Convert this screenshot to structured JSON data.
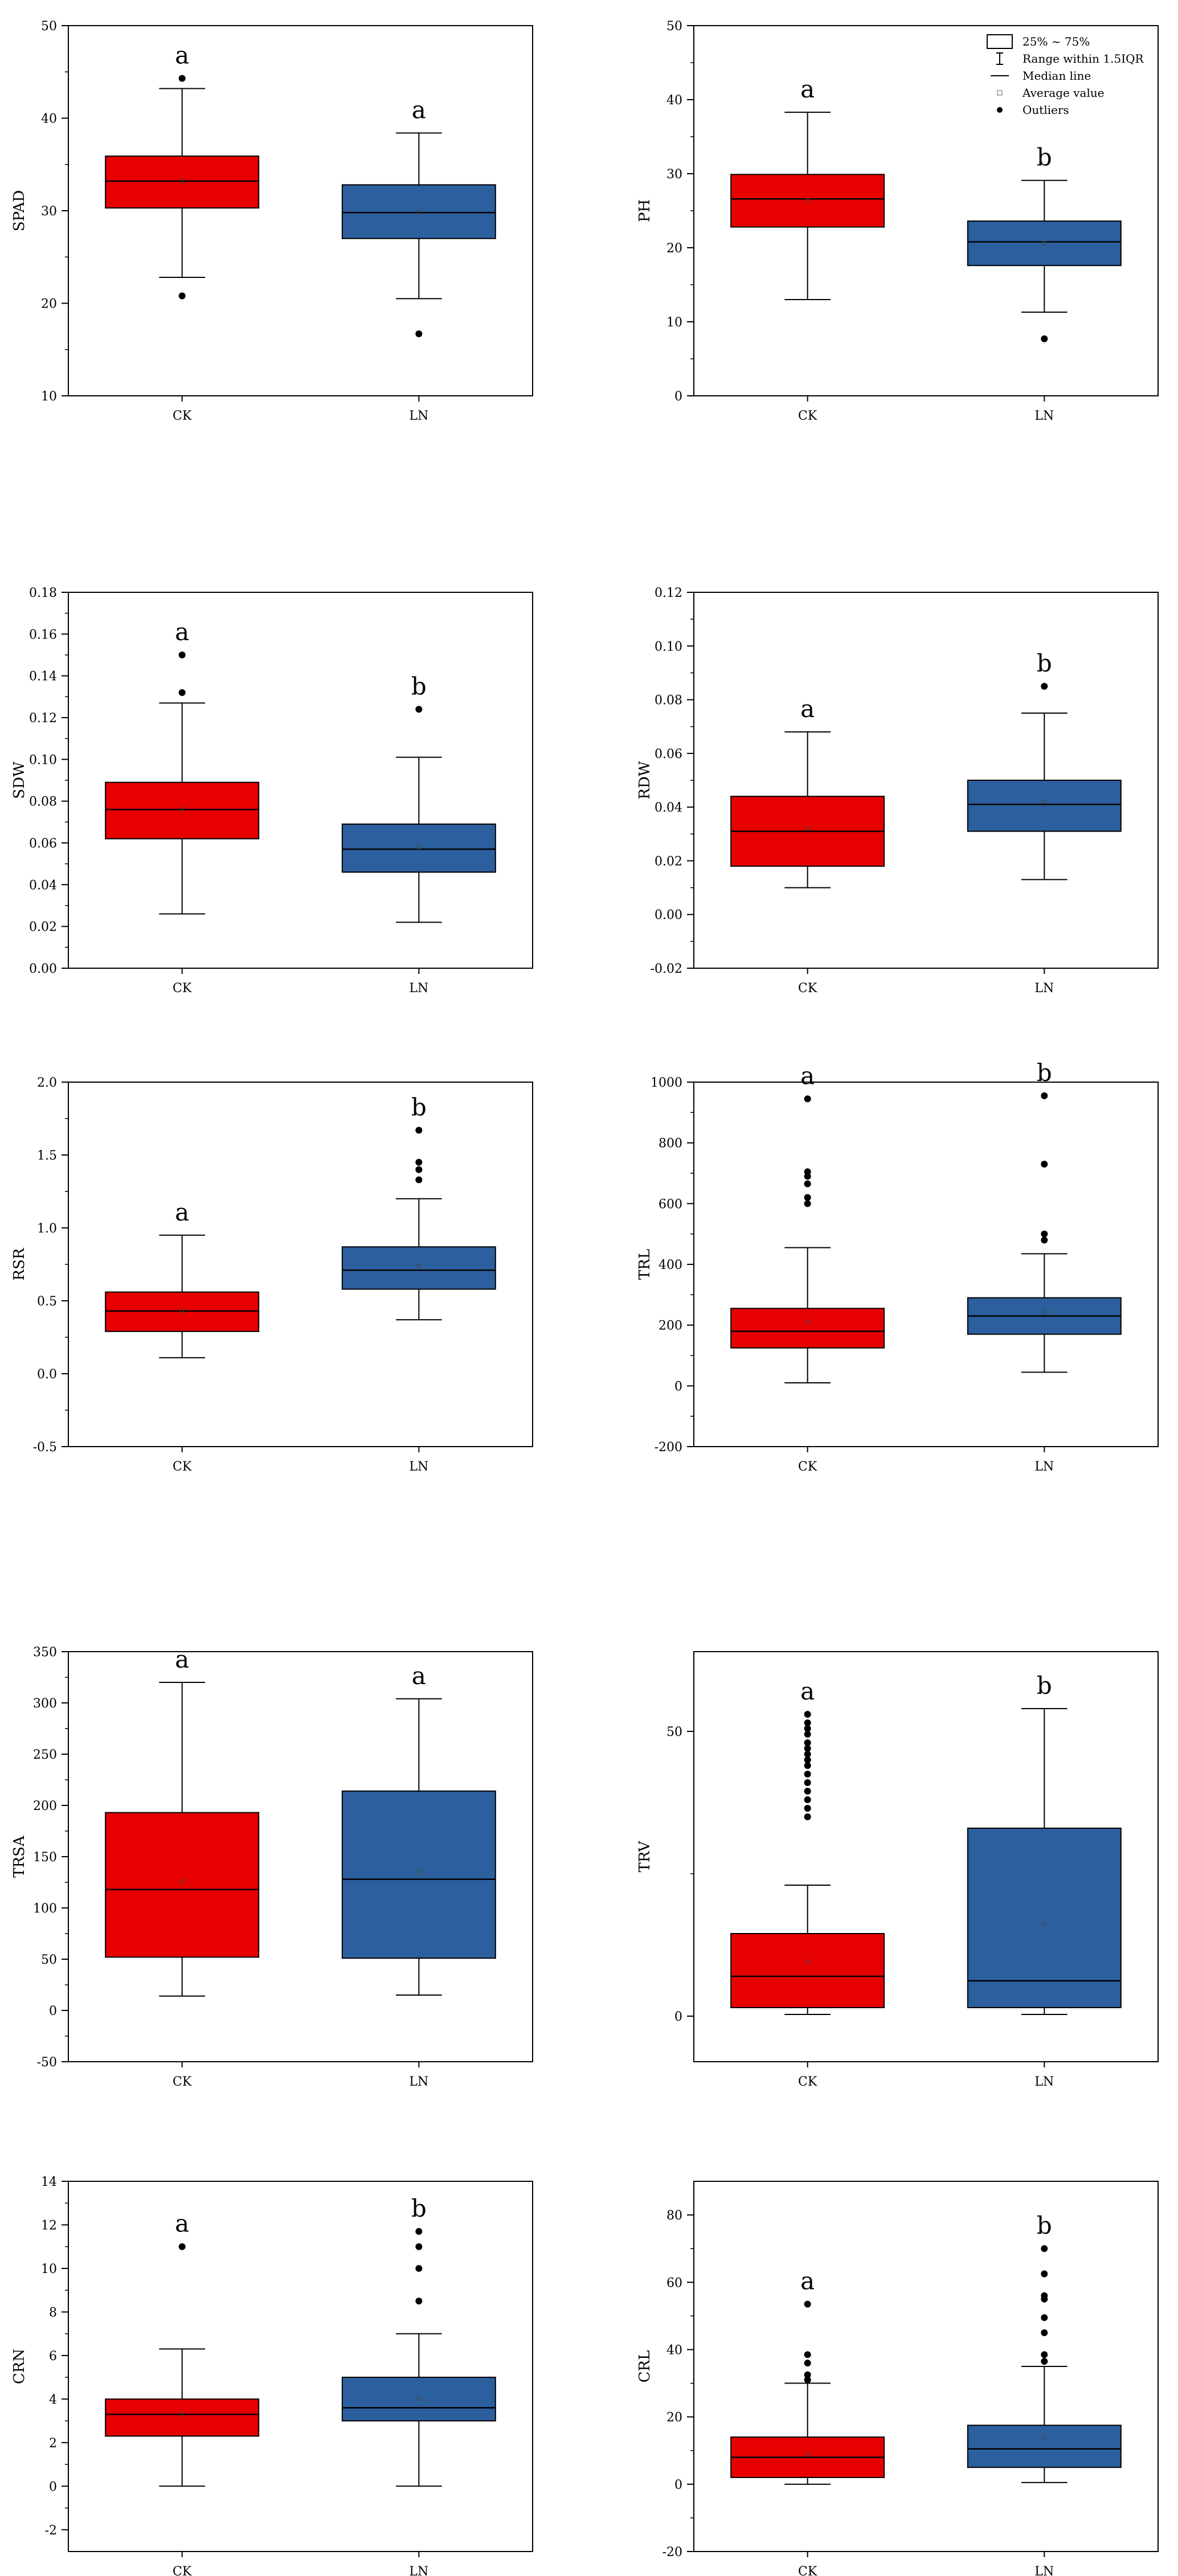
{
  "chart_data": [
    {
      "type": "box",
      "ylabel": "SPAD",
      "ylim": [
        10,
        50
      ],
      "yticks": [
        10,
        20,
        30,
        40,
        50
      ],
      "categories": [
        "CK",
        "LN"
      ],
      "letters": [
        "a",
        "a"
      ],
      "boxes": [
        {
          "name": "CK",
          "q1": 30.3,
          "median": 33.2,
          "q3": 35.9,
          "mean": 33.2,
          "whisker_low": 22.8,
          "whisker_high": 43.2,
          "outliers": [
            20.8,
            44.3
          ],
          "color": "#e60000"
        },
        {
          "name": "LN",
          "q1": 27.0,
          "median": 29.8,
          "q3": 32.8,
          "mean": 29.9,
          "whisker_low": 20.5,
          "whisker_high": 38.4,
          "outliers": [
            16.7
          ],
          "color": "#2c5f9e"
        }
      ]
    },
    {
      "type": "box",
      "ylabel": "PH",
      "ylim": [
        0,
        50
      ],
      "yticks": [
        0,
        10,
        20,
        30,
        40,
        50
      ],
      "categories": [
        "CK",
        "LN"
      ],
      "letters": [
        "a",
        "b"
      ],
      "legend": {
        "position": "top-right",
        "items": [
          "25% ~ 75%",
          "Range within 1.5IQR",
          "Median line",
          "Average value",
          "Outliers"
        ]
      },
      "boxes": [
        {
          "name": "CK",
          "q1": 22.8,
          "median": 26.6,
          "q3": 29.9,
          "mean": 26.4,
          "whisker_low": 13.0,
          "whisker_high": 38.3,
          "outliers": [],
          "color": "#e60000"
        },
        {
          "name": "LN",
          "q1": 17.6,
          "median": 20.8,
          "q3": 23.6,
          "mean": 20.6,
          "whisker_low": 11.3,
          "whisker_high": 29.1,
          "outliers": [
            7.7
          ],
          "color": "#2c5f9e"
        }
      ]
    },
    {
      "type": "box",
      "ylabel": "SDW",
      "ylim": [
        0,
        0.18
      ],
      "yticks": [
        0,
        0.02,
        0.04,
        0.06,
        0.08,
        0.1,
        0.12,
        0.14,
        0.16,
        0.18
      ],
      "ytick_labels": [
        "0.00",
        "0.02",
        "0.04",
        "0.06",
        "0.08",
        "0.10",
        "0.12",
        "0.14",
        "0.16",
        "0.18"
      ],
      "categories": [
        "CK",
        "LN"
      ],
      "letters": [
        "a",
        "b"
      ],
      "boxes": [
        {
          "name": "CK",
          "q1": 0.062,
          "median": 0.076,
          "q3": 0.089,
          "mean": 0.076,
          "whisker_low": 0.026,
          "whisker_high": 0.127,
          "outliers": [
            0.132,
            0.15
          ],
          "color": "#e60000"
        },
        {
          "name": "LN",
          "q1": 0.046,
          "median": 0.057,
          "q3": 0.069,
          "mean": 0.058,
          "whisker_low": 0.022,
          "whisker_high": 0.101,
          "outliers": [
            0.124
          ],
          "color": "#2c5f9e"
        }
      ]
    },
    {
      "type": "box",
      "ylabel": "RDW",
      "ylim": [
        -0.02,
        0.12
      ],
      "yticks": [
        -0.02,
        0,
        0.02,
        0.04,
        0.06,
        0.08,
        0.1,
        0.12
      ],
      "ytick_labels": [
        "-0.02",
        "0.00",
        "0.02",
        "0.04",
        "0.06",
        "0.08",
        "0.10",
        "0.12"
      ],
      "categories": [
        "CK",
        "LN"
      ],
      "letters": [
        "a",
        "b"
      ],
      "boxes": [
        {
          "name": "CK",
          "q1": 0.018,
          "median": 0.031,
          "q3": 0.044,
          "mean": 0.032,
          "whisker_low": 0.01,
          "whisker_high": 0.068,
          "outliers": [],
          "color": "#e60000"
        },
        {
          "name": "LN",
          "q1": 0.031,
          "median": 0.041,
          "q3": 0.05,
          "mean": 0.042,
          "whisker_low": 0.013,
          "whisker_high": 0.075,
          "outliers": [
            0.085
          ],
          "color": "#2c5f9e"
        }
      ]
    },
    {
      "type": "box",
      "ylabel": "RSR",
      "ylim": [
        -0.5,
        2.0
      ],
      "yticks": [
        -0.5,
        0,
        0.5,
        1.0,
        1.5,
        2.0
      ],
      "ytick_labels": [
        "-0.5",
        "0.0",
        "0.5",
        "1.0",
        "1.5",
        "2.0"
      ],
      "categories": [
        "CK",
        "LN"
      ],
      "letters": [
        "a",
        "b"
      ],
      "boxes": [
        {
          "name": "CK",
          "q1": 0.29,
          "median": 0.43,
          "q3": 0.56,
          "mean": 0.43,
          "whisker_low": 0.11,
          "whisker_high": 0.95,
          "outliers": [],
          "color": "#e60000"
        },
        {
          "name": "LN",
          "q1": 0.58,
          "median": 0.71,
          "q3": 0.87,
          "mean": 0.74,
          "whisker_low": 0.37,
          "whisker_high": 1.2,
          "outliers": [
            1.33,
            1.4,
            1.45,
            1.67
          ],
          "color": "#2c5f9e"
        }
      ]
    },
    {
      "type": "box",
      "ylabel": "TRL",
      "ylim": [
        -200,
        1000
      ],
      "yticks": [
        -200,
        0,
        200,
        400,
        600,
        800,
        1000
      ],
      "categories": [
        "CK",
        "LN"
      ],
      "letters": [
        "a",
        "b"
      ],
      "boxes": [
        {
          "name": "CK",
          "q1": 125,
          "median": 180,
          "q3": 255,
          "mean": 210,
          "whisker_low": 10,
          "whisker_high": 455,
          "outliers": [
            600,
            620,
            665,
            690,
            705,
            945
          ],
          "color": "#e60000"
        },
        {
          "name": "LN",
          "q1": 170,
          "median": 230,
          "q3": 290,
          "mean": 245,
          "whisker_low": 45,
          "whisker_high": 435,
          "outliers": [
            480,
            500,
            730,
            955
          ],
          "color": "#2c5f9e"
        }
      ]
    },
    {
      "type": "box",
      "ylabel": "TRSA",
      "ylim": [
        -50,
        350
      ],
      "yticks": [
        -50,
        0,
        50,
        100,
        150,
        200,
        250,
        300,
        350
      ],
      "categories": [
        "CK",
        "LN"
      ],
      "letters": [
        "a",
        "a"
      ],
      "boxes": [
        {
          "name": "CK",
          "q1": 52,
          "median": 118,
          "q3": 193,
          "mean": 126,
          "whisker_low": 14,
          "whisker_high": 320,
          "outliers": [],
          "color": "#e60000"
        },
        {
          "name": "LN",
          "q1": 51,
          "median": 128,
          "q3": 214,
          "mean": 135,
          "whisker_low": 15,
          "whisker_high": 304,
          "outliers": [],
          "color": "#2c5f9e"
        }
      ]
    },
    {
      "type": "box",
      "ylabel": "TRV",
      "ylim": [
        -8,
        64
      ],
      "yticks": [
        0,
        50
      ],
      "categories": [
        "CK",
        "LN"
      ],
      "letters": [
        "a",
        "b"
      ],
      "boxes": [
        {
          "name": "CK",
          "q1": 1.5,
          "median": 7,
          "q3": 14.5,
          "mean": 9.5,
          "whisker_low": 0.3,
          "whisker_high": 23,
          "outliers": [
            35,
            36.5,
            38,
            39.5,
            41,
            42.5,
            44,
            45,
            46,
            47,
            48,
            49.5,
            50.5,
            51.5,
            53
          ],
          "color": "#e60000"
        },
        {
          "name": "LN",
          "q1": 1.5,
          "median": 6.2,
          "q3": 33,
          "mean": 16.2,
          "whisker_low": 0.3,
          "whisker_high": 54,
          "outliers": [],
          "color": "#2c5f9e"
        }
      ]
    },
    {
      "type": "box",
      "ylabel": "CRN",
      "ylim": [
        -3,
        14
      ],
      "yticks": [
        -2,
        0,
        2,
        4,
        6,
        8,
        10,
        12,
        14
      ],
      "categories": [
        "CK",
        "LN"
      ],
      "letters": [
        "a",
        "b"
      ],
      "boxes": [
        {
          "name": "CK",
          "q1": 2.3,
          "median": 3.3,
          "q3": 4.0,
          "mean": 3.3,
          "whisker_low": 0,
          "whisker_high": 6.3,
          "outliers": [
            11
          ],
          "color": "#e60000"
        },
        {
          "name": "LN",
          "q1": 3.0,
          "median": 3.6,
          "q3": 5.0,
          "mean": 4.0,
          "whisker_low": 0,
          "whisker_high": 7.0,
          "outliers": [
            8.5,
            10,
            11,
            11.7
          ],
          "color": "#2c5f9e"
        }
      ]
    },
    {
      "type": "box",
      "ylabel": "CRL",
      "ylim": [
        -20,
        90
      ],
      "yticks": [
        -20,
        0,
        20,
        40,
        60,
        80
      ],
      "categories": [
        "CK",
        "LN"
      ],
      "letters": [
        "a",
        "b"
      ],
      "boxes": [
        {
          "name": "CK",
          "q1": 2,
          "median": 8,
          "q3": 14,
          "mean": 9,
          "whisker_low": 0,
          "whisker_high": 30,
          "outliers": [
            31,
            32.5,
            36,
            38.5,
            53.5
          ],
          "color": "#e60000"
        },
        {
          "name": "LN",
          "q1": 5,
          "median": 10.5,
          "q3": 17.5,
          "mean": 14,
          "whisker_low": 0.5,
          "whisker_high": 35,
          "outliers": [
            36.5,
            38.5,
            45,
            49.5,
            55,
            56,
            62.5,
            70
          ],
          "color": "#2c5f9e"
        }
      ]
    }
  ]
}
